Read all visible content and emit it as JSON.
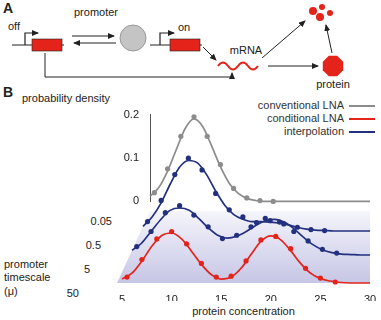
{
  "panel_a": {
    "label": "A",
    "promoter": "promoter",
    "off": "off",
    "on": "on",
    "mrna": "mRNA",
    "protein": "protein"
  },
  "panel_b": {
    "label": "B",
    "ylabel": "probability density",
    "xlabel": "protein concentration",
    "depth_label": "promoter timescale",
    "depth_unit": "(μ)",
    "legend": "upper right"
  },
  "chart_data": [
    {
      "type": "line",
      "promoter_timescale": 0.05,
      "xlim": [
        5,
        30
      ],
      "ylim": [
        0,
        0.2
      ],
      "yticks": [
        0,
        0.1,
        0.2
      ],
      "tick_labels": "y",
      "series": [
        {
          "name": "conventional LNA",
          "color": "#8c8c8c",
          "line_style": "solid",
          "x": [
            5,
            6,
            7,
            8,
            9,
            10,
            11,
            12,
            13,
            14,
            15,
            16,
            17,
            18,
            19,
            20,
            21,
            22,
            23,
            24,
            25,
            26,
            27,
            28,
            29,
            30
          ],
          "values": [
            0.012,
            0.032,
            0.07,
            0.12,
            0.168,
            0.19,
            0.172,
            0.128,
            0.08,
            0.042,
            0.019,
            0.007,
            0.002,
            0,
            0,
            0,
            0,
            0,
            0,
            0,
            0,
            0,
            0,
            0,
            0,
            0
          ]
        },
        {
          "name": "conventional LNA",
          "color": "#8c8c8c",
          "marker": "circle",
          "x": [
            5.5,
            7,
            8.5,
            10,
            11.5,
            13,
            14.5,
            16,
            17.5,
            19
          ],
          "values": [
            0.02,
            0.075,
            0.15,
            0.195,
            0.15,
            0.085,
            0.03,
            0.008,
            0.002,
            0
          ]
        }
      ]
    },
    {
      "type": "line",
      "promoter_timescale": 0.5,
      "xlim": [
        5,
        30
      ],
      "ylim": [
        0,
        0.2
      ],
      "tick_labels": false,
      "series": [
        {
          "name": "interpolation",
          "color": "#23307f",
          "line_style": "solid",
          "x": [
            5,
            6,
            7,
            8,
            9,
            10,
            11,
            12,
            13,
            14,
            15,
            16,
            17,
            18,
            19,
            20,
            21,
            22,
            23,
            24,
            25,
            26,
            27,
            28,
            29,
            30
          ],
          "values": [
            0.01,
            0.03,
            0.06,
            0.1,
            0.135,
            0.15,
            0.145,
            0.12,
            0.085,
            0.055,
            0.035,
            0.025,
            0.02,
            0.02,
            0.019,
            0.017,
            0.013,
            0.008,
            0.004,
            0.002,
            0.001,
            0,
            0,
            0,
            0,
            0
          ]
        },
        {
          "name": "interpolation",
          "color": "#23307f",
          "marker": "circle",
          "x": [
            5.5,
            7,
            8.5,
            10,
            11.5,
            13,
            14.5,
            16,
            17.5,
            19,
            20.5,
            22,
            23.5,
            25
          ],
          "values": [
            0.02,
            0.065,
            0.12,
            0.155,
            0.13,
            0.08,
            0.045,
            0.03,
            0.018,
            0.022,
            0.015,
            0.008,
            0.003,
            0.001
          ]
        }
      ]
    },
    {
      "type": "line",
      "promoter_timescale": 5,
      "xlim": [
        5,
        30
      ],
      "ylim": [
        0,
        0.2
      ],
      "tick_labels": false,
      "series": [
        {
          "name": "interpolation",
          "color": "#23307f",
          "line_style": "solid",
          "x": [
            5,
            6,
            7,
            8,
            9,
            10,
            11,
            12,
            13,
            14,
            15,
            16,
            17,
            18,
            19,
            20,
            21,
            22,
            23,
            24,
            25,
            26,
            27,
            28,
            29,
            30
          ],
          "values": [
            0.01,
            0.025,
            0.05,
            0.075,
            0.095,
            0.1,
            0.095,
            0.078,
            0.058,
            0.042,
            0.036,
            0.04,
            0.05,
            0.063,
            0.073,
            0.076,
            0.07,
            0.056,
            0.038,
            0.022,
            0.011,
            0.005,
            0.002,
            0.001,
            0,
            0
          ]
        },
        {
          "name": "interpolation",
          "color": "#23307f",
          "marker": "circle",
          "x": [
            5.5,
            7,
            8.5,
            10,
            11.5,
            13,
            14.5,
            16,
            17.5,
            19,
            20.5,
            22,
            23.5,
            25,
            26.5
          ],
          "values": [
            0.018,
            0.05,
            0.09,
            0.105,
            0.085,
            0.06,
            0.035,
            0.042,
            0.06,
            0.078,
            0.07,
            0.05,
            0.03,
            0.012,
            0.004
          ]
        }
      ]
    },
    {
      "type": "line",
      "promoter_timescale": 50,
      "xlim": [
        5,
        30
      ],
      "ylim": [
        0,
        0.2
      ],
      "xticks": [
        5,
        10,
        15,
        20,
        25,
        30
      ],
      "tick_labels": "x",
      "series": [
        {
          "name": "conditional LNA",
          "color": "#e4231b",
          "line_style": "solid",
          "x": [
            5,
            6,
            7,
            8,
            9,
            10,
            11,
            12,
            13,
            14,
            15,
            16,
            17,
            18,
            19,
            20,
            21,
            22,
            23,
            24,
            25,
            26,
            27,
            28,
            29,
            30
          ],
          "values": [
            0.008,
            0.02,
            0.045,
            0.075,
            0.097,
            0.102,
            0.09,
            0.065,
            0.038,
            0.017,
            0.008,
            0.012,
            0.03,
            0.058,
            0.085,
            0.096,
            0.088,
            0.066,
            0.04,
            0.02,
            0.009,
            0.004,
            0.001,
            0,
            0,
            0
          ]
        },
        {
          "name": "conditional LNA",
          "color": "#e4231b",
          "marker": "circle",
          "x": [
            5.5,
            7,
            8.5,
            10,
            11.5,
            13,
            14.5,
            16,
            17.5,
            19,
            20.5,
            22,
            23.5,
            25,
            26.5
          ],
          "values": [
            0.012,
            0.048,
            0.09,
            0.105,
            0.08,
            0.04,
            0.012,
            0.014,
            0.045,
            0.088,
            0.095,
            0.07,
            0.03,
            0.01,
            0.002
          ]
        }
      ]
    }
  ]
}
